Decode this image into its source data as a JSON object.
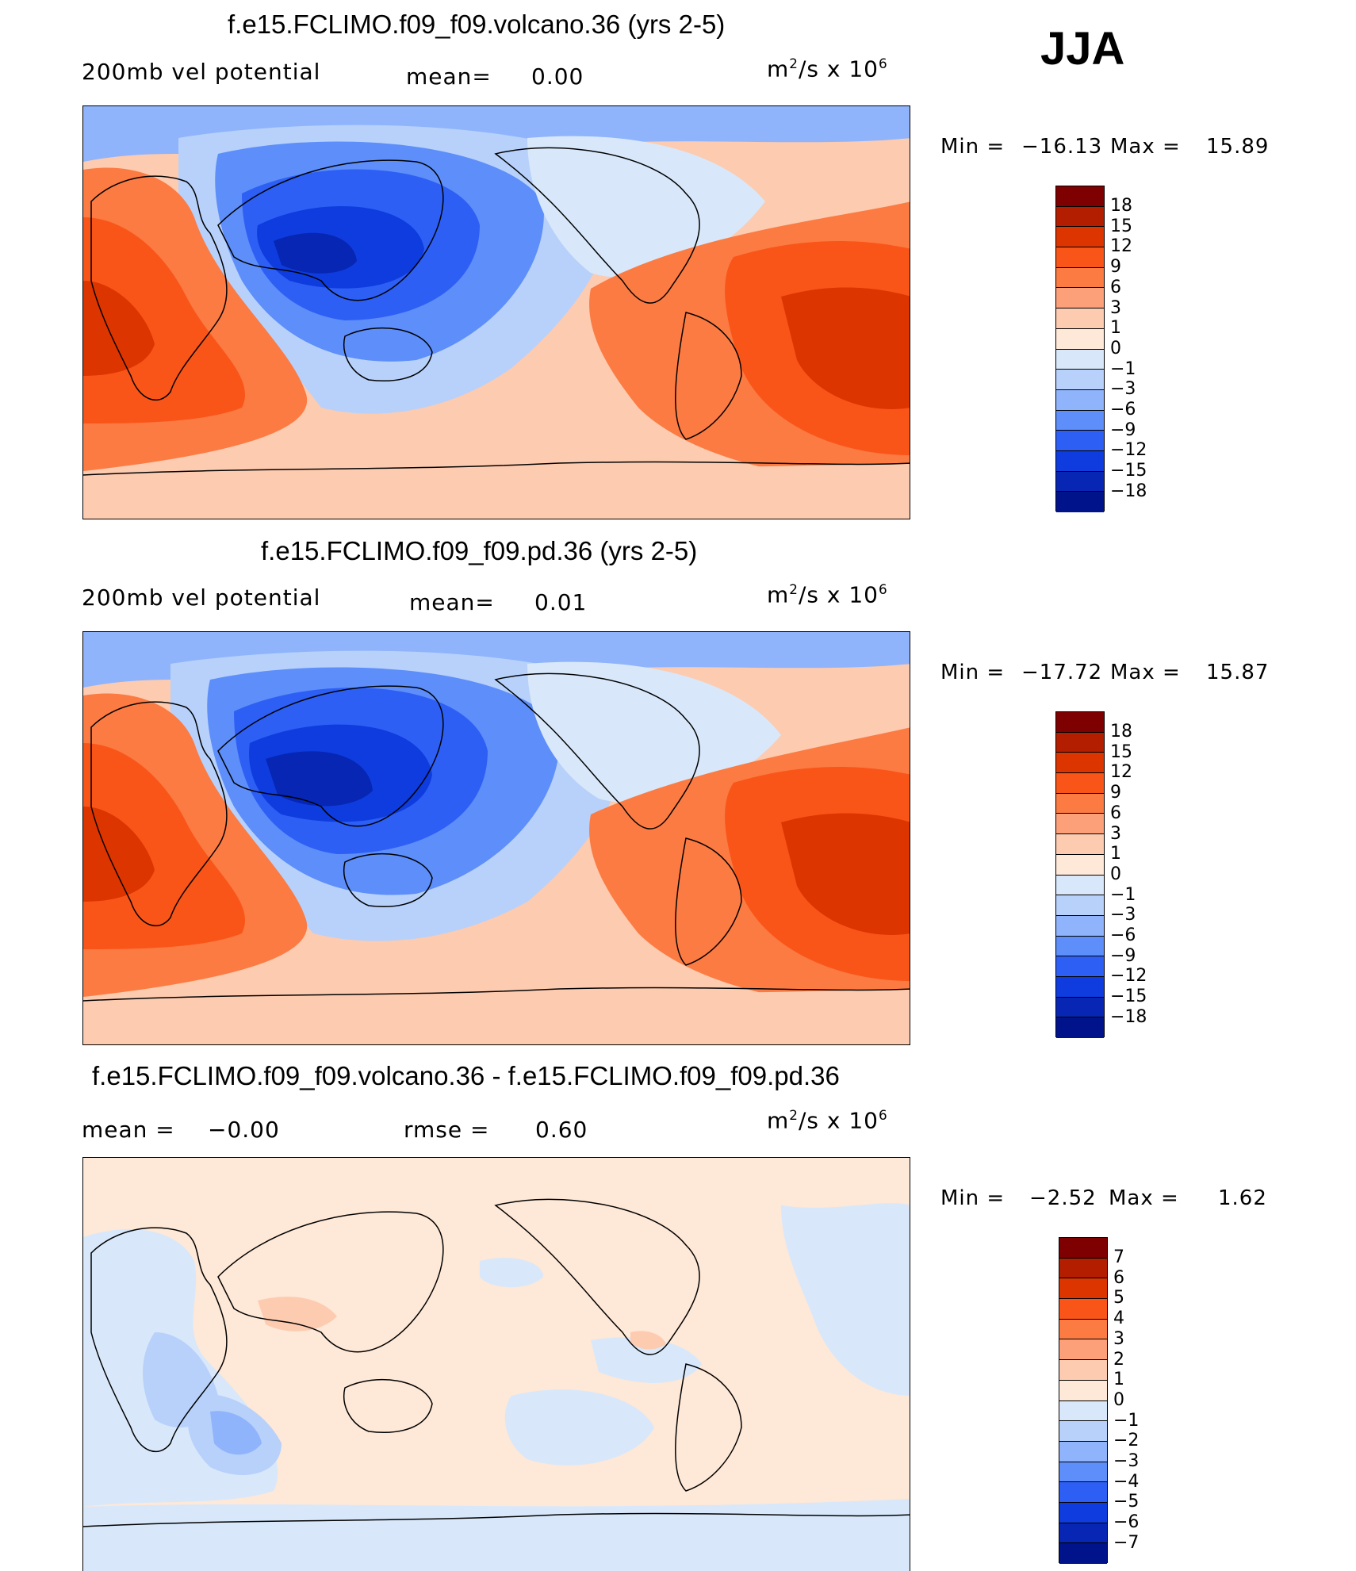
{
  "season": "JJA",
  "panels": [
    {
      "title": "f.e15.FCLIMO.f09_f09.volcano.36 (yrs 2-5)",
      "left_label": "200mb vel potential",
      "mean_label": "mean=",
      "mean_value": "0.00",
      "units": "m²/s x 10⁶",
      "min_label": "Min =",
      "min_value": "−16.13",
      "max_label": "Max =",
      "max_value": "15.89",
      "colorbar_labels": [
        "18",
        "15",
        "12",
        "9",
        "6",
        "3",
        "1",
        "0",
        "−1",
        "−3",
        "−6",
        "−9",
        "−12",
        "−15",
        "−18"
      ]
    },
    {
      "title": "f.e15.FCLIMO.f09_f09.pd.36 (yrs 2-5)",
      "left_label": "200mb vel potential",
      "mean_label": "mean=",
      "mean_value": "0.01",
      "units": "m²/s x 10⁶",
      "min_label": "Min =",
      "min_value": "−17.72",
      "max_label": "Max =",
      "max_value": "15.87",
      "colorbar_labels": [
        "18",
        "15",
        "12",
        "9",
        "6",
        "3",
        "1",
        "0",
        "−1",
        "−3",
        "−6",
        "−9",
        "−12",
        "−15",
        "−18"
      ]
    },
    {
      "title": "f.e15.FCLIMO.f09_f09.volcano.36 - f.e15.FCLIMO.f09_f09.pd.36",
      "left_label": "mean =",
      "left_value": "−0.00",
      "mean_label": "rmse =",
      "mean_value": "0.60",
      "units": "m²/s x 10⁶",
      "min_label": "Min =",
      "min_value": "−2.52",
      "max_label": "Max =",
      "max_value": "1.62",
      "colorbar_labels": [
        "7",
        "6",
        "5",
        "4",
        "3",
        "2",
        "1",
        "0",
        "−1",
        "−2",
        "−3",
        "−4",
        "−5",
        "−6",
        "−7"
      ]
    }
  ],
  "colors": {
    "warm": [
      "#7f0000",
      "#b31e00",
      "#dd3500",
      "#fa5518",
      "#fb7b43",
      "#fca07a",
      "#fdcbb0",
      "#fee8d7"
    ],
    "cool": [
      "#d8e8fa",
      "#b7d1fb",
      "#8fb4fb",
      "#5d8ef9",
      "#2d5ff5",
      "#0e3cde",
      "#0626b3",
      "#00138a"
    ]
  }
}
